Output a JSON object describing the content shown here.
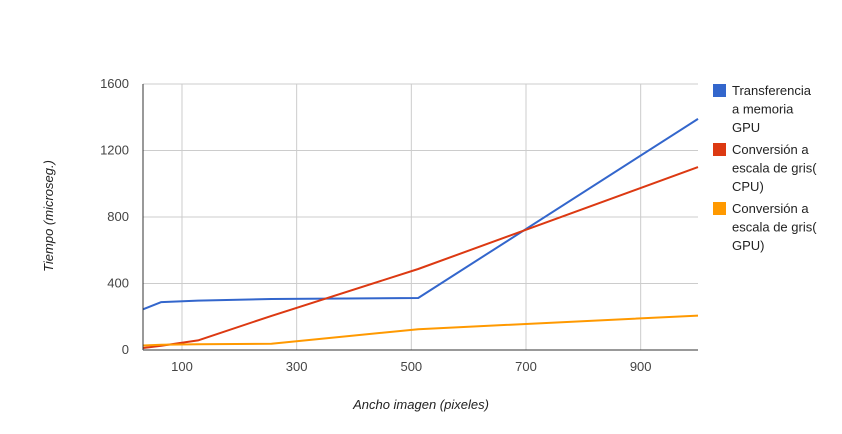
{
  "chart_data": {
    "type": "line",
    "xlabel": "Ancho imagen (pixeles)",
    "ylabel": "Tiempo (microseg.)",
    "xlim": [
      32,
      1000
    ],
    "ylim": [
      0,
      1600
    ],
    "x_ticks": [
      100,
      300,
      500,
      700,
      900
    ],
    "y_ticks": [
      0,
      400,
      800,
      1200,
      1600
    ],
    "x_tick_labels": [
      "100",
      "300",
      "500",
      "700",
      "900"
    ],
    "y_tick_labels": [
      "0",
      "400",
      "800",
      "1200",
      "1600"
    ],
    "grid": true,
    "legend_position": "right",
    "series": [
      {
        "name": "Transferencia a memoria GPU",
        "legend_lines": [
          "Transferencia",
          "a memoria",
          "GPU"
        ],
        "color": "#3366cc",
        "points": [
          [
            32,
            245
          ],
          [
            64,
            288
          ],
          [
            128,
            297
          ],
          [
            256,
            307
          ],
          [
            512,
            313
          ],
          [
            1000,
            1390
          ]
        ]
      },
      {
        "name": "Conversión a escala de gris( CPU)",
        "legend_lines": [
          "Conversión a",
          "escala de gris(",
          "CPU)"
        ],
        "color": "#dc3912",
        "points": [
          [
            32,
            12
          ],
          [
            64,
            25
          ],
          [
            128,
            58
          ],
          [
            256,
            205
          ],
          [
            512,
            487
          ],
          [
            1000,
            1100
          ]
        ]
      },
      {
        "name": "Conversión a escala de gris( GPU)",
        "legend_lines": [
          "Conversión a",
          "escala de gris(",
          "GPU)"
        ],
        "color": "#ff9900",
        "points": [
          [
            32,
            27
          ],
          [
            64,
            32
          ],
          [
            128,
            35
          ],
          [
            256,
            37
          ],
          [
            512,
            125
          ],
          [
            1000,
            207
          ]
        ]
      }
    ]
  }
}
